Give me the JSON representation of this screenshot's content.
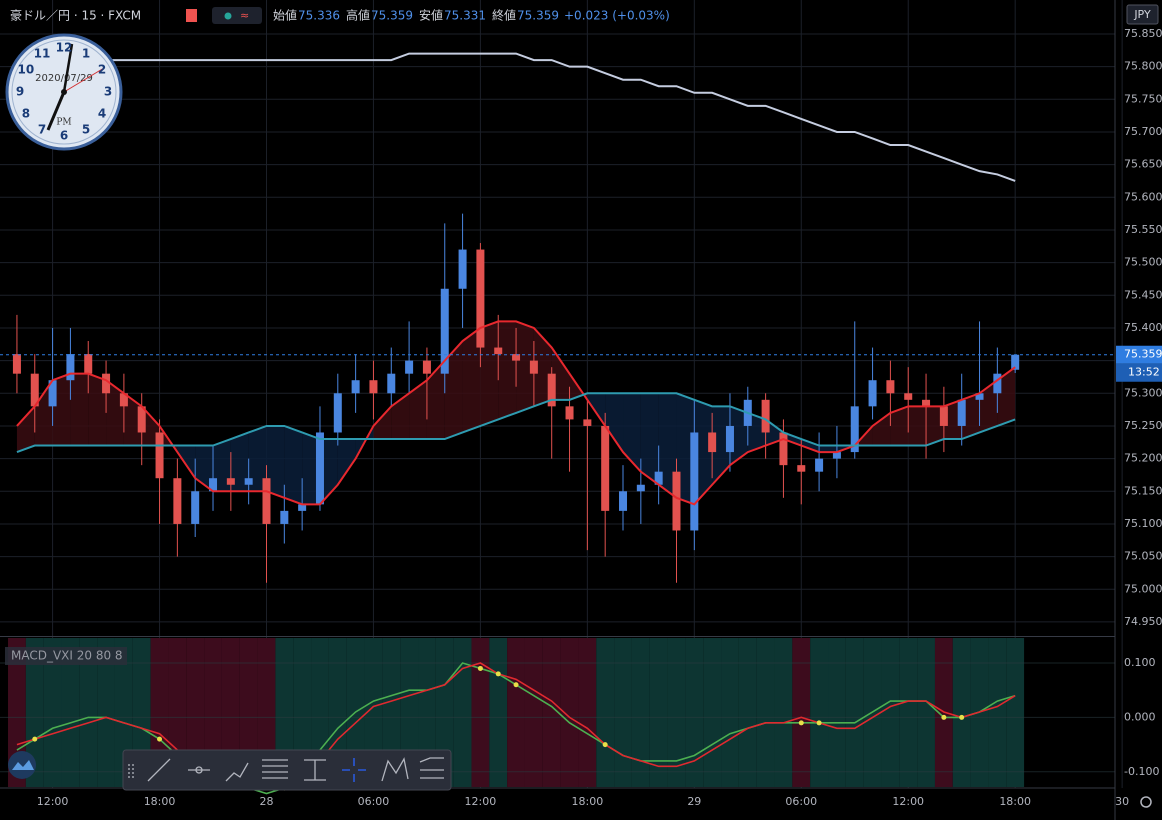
{
  "header": {
    "symbol": "豪ドル／円 · 15 · FXCM",
    "open_label": "始値",
    "high_label": "高値",
    "low_label": "安値",
    "close_label": "終値",
    "change": "+0.023 (+0.03%)"
  },
  "clock": {
    "date": "2020/07/29",
    "period": "PM",
    "numbers": [
      "12",
      "1",
      "2",
      "3",
      "4",
      "5",
      "6",
      "7",
      "8",
      "9",
      "10",
      "11"
    ]
  },
  "chart_data": [
    {
      "type": "candlestick",
      "currency": "JPY",
      "countdown": "13:52",
      "up_color": "#4a86e0",
      "down_color": "#e2524f",
      "open": [
        75.36,
        75.33,
        75.28,
        75.32,
        75.36,
        75.33,
        75.3,
        75.28,
        75.24,
        75.17,
        75.1,
        75.15,
        75.17,
        75.16,
        75.17,
        75.1,
        75.12,
        75.13,
        75.24,
        75.3,
        75.32,
        75.3,
        75.33,
        75.35,
        75.33,
        75.46,
        75.52,
        75.37,
        75.36,
        75.35,
        75.33,
        75.28,
        75.26,
        75.25,
        75.12,
        75.15,
        75.16,
        75.18,
        75.09,
        75.24,
        75.21,
        75.25,
        75.29,
        75.24,
        75.19,
        75.18,
        75.2,
        75.21,
        75.28,
        75.32,
        75.3,
        75.29,
        75.28,
        75.25,
        75.29,
        75.3,
        75.336
      ],
      "high": [
        75.42,
        75.36,
        75.4,
        75.4,
        75.38,
        75.35,
        75.33,
        75.3,
        75.26,
        75.2,
        75.2,
        75.22,
        75.21,
        75.2,
        75.19,
        75.16,
        75.17,
        75.28,
        75.33,
        75.36,
        75.35,
        75.37,
        75.41,
        75.37,
        75.56,
        75.575,
        75.53,
        75.42,
        75.4,
        75.38,
        75.34,
        75.31,
        75.29,
        75.27,
        75.19,
        75.2,
        75.22,
        75.2,
        75.29,
        75.27,
        75.3,
        75.31,
        75.3,
        75.26,
        75.23,
        75.24,
        75.25,
        75.41,
        75.37,
        75.35,
        75.34,
        75.33,
        75.31,
        75.33,
        75.41,
        75.37,
        75.359
      ],
      "low": [
        75.3,
        75.24,
        75.25,
        75.29,
        75.3,
        75.27,
        75.24,
        75.19,
        75.1,
        75.05,
        75.08,
        75.12,
        75.12,
        75.13,
        75.01,
        75.07,
        75.09,
        75.12,
        75.22,
        75.27,
        75.26,
        75.28,
        75.3,
        75.26,
        75.3,
        75.4,
        75.34,
        75.32,
        75.31,
        75.28,
        75.2,
        75.18,
        75.06,
        75.05,
        75.09,
        75.1,
        75.13,
        75.01,
        75.06,
        75.17,
        75.18,
        75.22,
        75.2,
        75.14,
        75.13,
        75.15,
        75.17,
        75.2,
        75.26,
        75.25,
        75.24,
        75.2,
        75.21,
        75.22,
        75.25,
        75.27,
        75.331
      ],
      "close": [
        75.33,
        75.28,
        75.32,
        75.36,
        75.33,
        75.3,
        75.28,
        75.24,
        75.17,
        75.1,
        75.15,
        75.17,
        75.16,
        75.17,
        75.1,
        75.12,
        75.13,
        75.24,
        75.3,
        75.32,
        75.3,
        75.33,
        75.35,
        75.33,
        75.46,
        75.52,
        75.37,
        75.36,
        75.35,
        75.33,
        75.28,
        75.26,
        75.25,
        75.12,
        75.15,
        75.16,
        75.18,
        75.09,
        75.24,
        75.21,
        75.25,
        75.29,
        75.24,
        75.19,
        75.18,
        75.2,
        75.21,
        75.28,
        75.32,
        75.3,
        75.29,
        75.28,
        75.25,
        75.29,
        75.3,
        75.33,
        75.359
      ],
      "lines": [
        {
          "color": "#c5cde0",
          "values": [
            75.79,
            75.8,
            75.8,
            75.8,
            75.81,
            75.81,
            75.81,
            75.81,
            75.81,
            75.81,
            75.81,
            75.81,
            75.81,
            75.81,
            75.81,
            75.81,
            75.81,
            75.81,
            75.81,
            75.81,
            75.81,
            75.81,
            75.82,
            75.82,
            75.82,
            75.82,
            75.82,
            75.82,
            75.82,
            75.81,
            75.81,
            75.8,
            75.8,
            75.79,
            75.78,
            75.78,
            75.77,
            75.77,
            75.76,
            75.76,
            75.75,
            75.74,
            75.74,
            75.73,
            75.72,
            75.71,
            75.7,
            75.7,
            75.69,
            75.68,
            75.68,
            75.67,
            75.66,
            75.65,
            75.64,
            75.635,
            75.625
          ]
        },
        {
          "color": "#e8282e",
          "values": [
            75.25,
            75.28,
            75.32,
            75.33,
            75.33,
            75.32,
            75.3,
            75.28,
            75.25,
            75.21,
            75.17,
            75.15,
            75.15,
            75.15,
            75.15,
            75.14,
            75.13,
            75.13,
            75.16,
            75.2,
            75.25,
            75.28,
            75.3,
            75.32,
            75.35,
            75.38,
            75.4,
            75.41,
            75.41,
            75.4,
            75.37,
            75.33,
            75.29,
            75.25,
            75.21,
            75.18,
            75.16,
            75.14,
            75.13,
            75.16,
            75.19,
            75.21,
            75.22,
            75.23,
            75.22,
            75.21,
            75.21,
            75.22,
            75.25,
            75.27,
            75.28,
            75.28,
            75.28,
            75.29,
            75.3,
            75.32,
            75.34
          ]
        },
        {
          "color": "#2e9bb0",
          "values": [
            75.21,
            75.22,
            75.22,
            75.22,
            75.22,
            75.22,
            75.22,
            75.22,
            75.22,
            75.22,
            75.22,
            75.22,
            75.23,
            75.24,
            75.25,
            75.25,
            75.24,
            75.23,
            75.23,
            75.23,
            75.23,
            75.23,
            75.23,
            75.23,
            75.23,
            75.24,
            75.25,
            75.26,
            75.27,
            75.28,
            75.29,
            75.29,
            75.3,
            75.3,
            75.3,
            75.3,
            75.3,
            75.3,
            75.29,
            75.28,
            75.28,
            75.27,
            75.26,
            75.24,
            75.23,
            75.22,
            75.22,
            75.22,
            75.22,
            75.22,
            75.22,
            75.22,
            75.23,
            75.23,
            75.24,
            75.25,
            75.26
          ]
        }
      ],
      "xlim": [
        -0.95,
        61.6
      ],
      "xticks": [
        {
          "value": 2,
          "label": "12:00"
        },
        {
          "value": 8,
          "label": "18:00"
        },
        {
          "value": 14,
          "label": "28"
        },
        {
          "value": 20,
          "label": "06:00"
        },
        {
          "value": 26,
          "label": "12:00"
        },
        {
          "value": 32,
          "label": "18:00"
        },
        {
          "value": 38,
          "label": "29"
        },
        {
          "value": 44,
          "label": "06:00"
        },
        {
          "value": 50,
          "label": "12:00"
        },
        {
          "value": 56,
          "label": "18:00"
        },
        {
          "value": 62,
          "label": "30"
        }
      ],
      "ylim": [
        74.93,
        75.902
      ],
      "yticks": [
        {
          "value": 74.95,
          "label": "74.950"
        },
        {
          "value": 75.0,
          "label": "75.000"
        },
        {
          "value": 75.05,
          "label": "75.050"
        },
        {
          "value": 75.1,
          "label": "75.100"
        },
        {
          "value": 75.15,
          "label": "75.150"
        },
        {
          "value": 75.2,
          "label": "75.200"
        },
        {
          "value": 75.25,
          "label": "75.250"
        },
        {
          "value": 75.3,
          "label": "75.300"
        },
        {
          "value": 75.35,
          "label": "75.350"
        },
        {
          "value": 75.4,
          "label": "75.400"
        },
        {
          "value": 75.45,
          "label": "75.450"
        },
        {
          "value": 75.5,
          "label": "75.500"
        },
        {
          "value": 75.55,
          "label": "75.550"
        },
        {
          "value": 75.6,
          "label": "75.600"
        },
        {
          "value": 75.65,
          "label": "75.650"
        },
        {
          "value": 75.7,
          "label": "75.700"
        },
        {
          "value": 75.75,
          "label": "75.750"
        },
        {
          "value": 75.8,
          "label": "75.800"
        },
        {
          "value": 75.85,
          "label": "75.850"
        }
      ],
      "grid": true
    },
    {
      "type": "macd",
      "title": "MACD_VXI 20 80 8",
      "series": [
        {
          "color": "#4caf50",
          "values": [
            -0.06,
            -0.04,
            -0.02,
            -0.01,
            0.0,
            0.0,
            -0.01,
            -0.02,
            -0.04,
            -0.07,
            -0.09,
            -0.11,
            -0.12,
            -0.13,
            -0.14,
            -0.13,
            -0.1,
            -0.06,
            -0.02,
            0.01,
            0.03,
            0.04,
            0.05,
            0.05,
            0.06,
            0.1,
            0.09,
            0.08,
            0.06,
            0.04,
            0.02,
            -0.01,
            -0.03,
            -0.05,
            -0.07,
            -0.08,
            -0.08,
            -0.08,
            -0.07,
            -0.05,
            -0.03,
            -0.02,
            -0.01,
            -0.01,
            -0.01,
            -0.01,
            -0.01,
            -0.01,
            0.01,
            0.03,
            0.03,
            0.03,
            0.0,
            0.0,
            0.01,
            0.03,
            0.04
          ]
        },
        {
          "color": "#e0292f",
          "values": [
            -0.05,
            -0.04,
            -0.03,
            -0.02,
            -0.01,
            0.0,
            -0.01,
            -0.02,
            -0.03,
            -0.06,
            -0.08,
            -0.1,
            -0.11,
            -0.12,
            -0.13,
            -0.13,
            -0.11,
            -0.08,
            -0.04,
            -0.01,
            0.02,
            0.03,
            0.04,
            0.05,
            0.06,
            0.09,
            0.1,
            0.08,
            0.07,
            0.05,
            0.03,
            0.0,
            -0.02,
            -0.05,
            -0.07,
            -0.08,
            -0.09,
            -0.09,
            -0.08,
            -0.06,
            -0.04,
            -0.02,
            -0.01,
            -0.01,
            0.0,
            -0.01,
            -0.02,
            -0.02,
            0.0,
            0.02,
            0.03,
            0.03,
            0.01,
            0.0,
            0.01,
            0.02,
            0.04
          ]
        }
      ],
      "ylim": [
        -0.128,
        0.146
      ],
      "yticks": [
        {
          "value": 0.1,
          "label": "0.100"
        },
        {
          "value": 0.0,
          "label": "0.000"
        },
        {
          "value": -0.1,
          "label": "-0.100"
        }
      ]
    }
  ]
}
